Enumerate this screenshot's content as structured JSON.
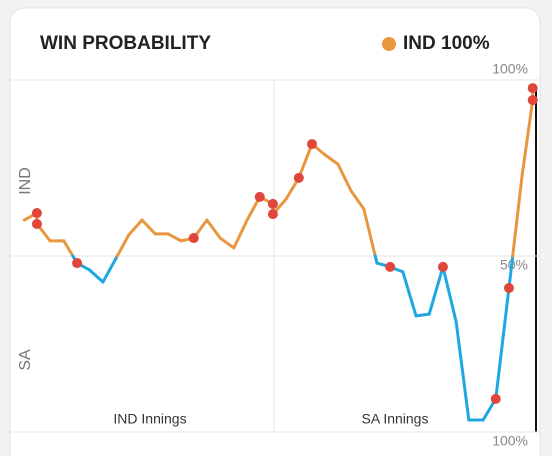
{
  "chart_data": {
    "type": "line",
    "title": "WIN PROBABILITY",
    "legend": {
      "label": "IND 100%",
      "color": "#e8973f"
    },
    "team_labels": [
      "IND",
      "SA"
    ],
    "innings_labels": [
      "IND Innings",
      "SA Innings"
    ],
    "colors": {
      "above": "#e8973f",
      "below": "#1ea7e1"
    },
    "xlim": [
      0,
      100
    ],
    "ylim": [
      0,
      100
    ],
    "yticks": [
      {
        "value": 100,
        "label": "100%"
      },
      {
        "value": 50,
        "label": "50%"
      },
      {
        "value": 0,
        "label": "100%"
      }
    ],
    "x": [
      2.7,
      5.1,
      5.1,
      7.6,
      10.2,
      12.7,
      15.1,
      17.6,
      20.1,
      22.5,
      25,
      27.5,
      29.9,
      32.4,
      34.8,
      37.3,
      39.8,
      42.4,
      44.9,
      47.3,
      49.8,
      49.8,
      52.3,
      54.7,
      57.2,
      59.7,
      62.1,
      64.6,
      67,
      69.5,
      72,
      74.4,
      76.9,
      79.4,
      82,
      84.5,
      86.9,
      89.6,
      92,
      94.5,
      97,
      99,
      99
    ],
    "values": [
      60.2,
      62.2,
      59.1,
      54.3,
      54.3,
      48,
      46,
      42.6,
      49.4,
      56,
      60.2,
      56.3,
      56.3,
      54.3,
      55.1,
      60.2,
      55.1,
      52.3,
      60.2,
      66.8,
      64.8,
      61.9,
      66.2,
      72.2,
      81.8,
      78.7,
      76.1,
      68.5,
      63.4,
      48,
      46.9,
      45.5,
      33,
      33.5,
      46.9,
      31.3,
      3.4,
      3.4,
      9.4,
      40.9,
      73,
      94.3,
      97.7
    ],
    "wickets": {
      "color": "#e0463c",
      "x": [
        5.1,
        5.1,
        12.7,
        34.8,
        47.3,
        49.8,
        49.8,
        54.7,
        57.2,
        72,
        82,
        92,
        94.5,
        99,
        99
      ],
      "values": [
        62.2,
        59.1,
        48,
        55.1,
        66.8,
        64.8,
        61.9,
        72.2,
        81.8,
        46.9,
        46.9,
        9.4,
        40.9,
        94.3,
        97.7
      ]
    }
  }
}
